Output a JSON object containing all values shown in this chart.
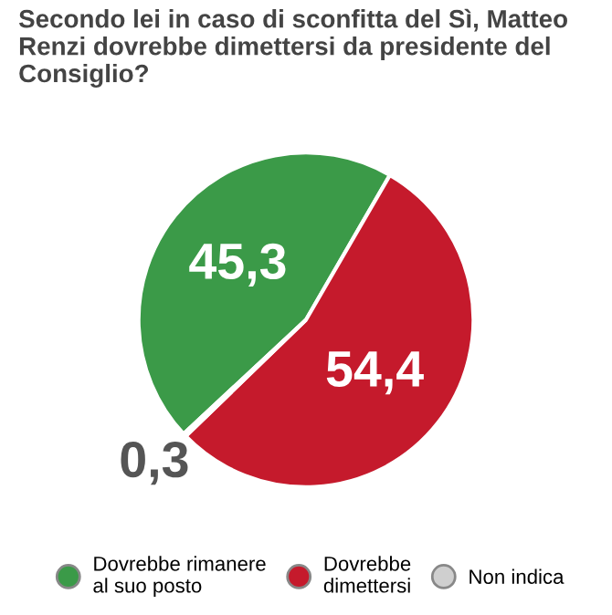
{
  "chart_data": {
    "type": "pie",
    "title": "Secondo lei in caso di sconfitta del Sì, Matteo Renzi dovrebbe dimettersi da presidente del Consiglio?",
    "categories": [
      "Dovrebbe rimanere\nal suo posto",
      "Dovrebbe\ndimettersi",
      "Non indica"
    ],
    "values": [
      45.3,
      54.4,
      0.3
    ],
    "colors": [
      "#3b9a48",
      "#c51a2c",
      "#cfcfcf"
    ],
    "value_labels": [
      "45,3",
      "54,4",
      "0,3"
    ],
    "legend": "bottom"
  }
}
